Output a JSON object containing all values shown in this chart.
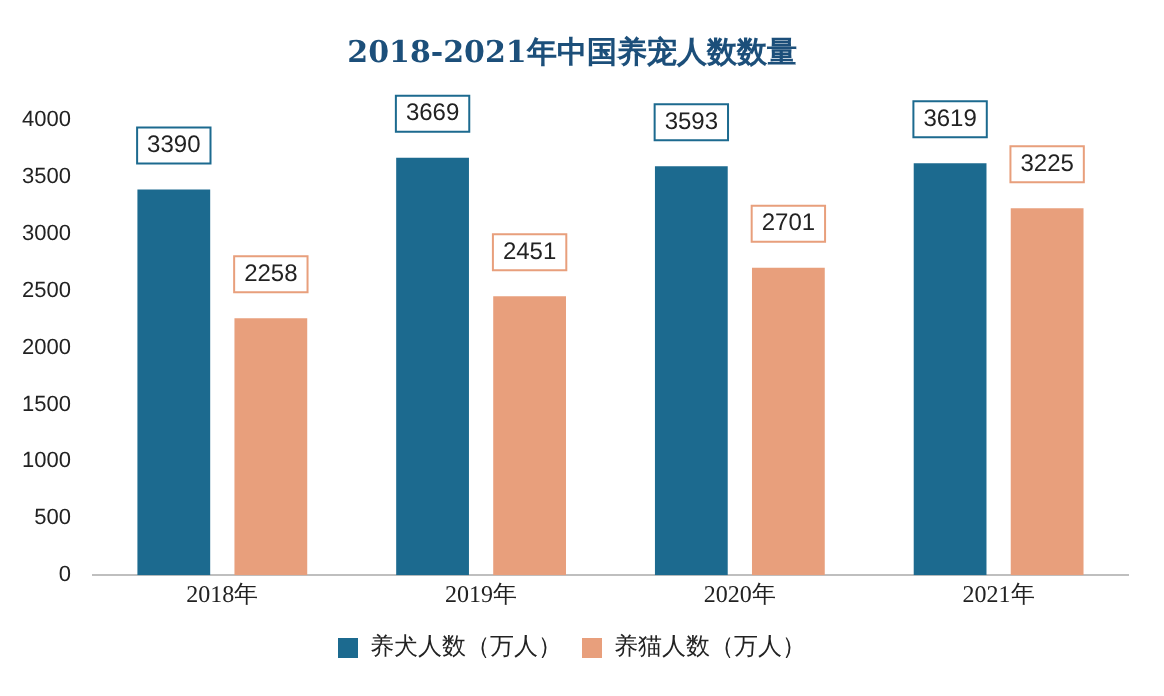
{
  "chart_data": {
    "type": "bar",
    "title": "2018-2021年中国养宠人数数量",
    "categories": [
      "2018年",
      "2019年",
      "2020年",
      "2021年"
    ],
    "series": [
      {
        "name": "养犬人数（万人）",
        "color": "#1c6a8f",
        "values": [
          3390,
          3669,
          3593,
          3619
        ]
      },
      {
        "name": "养猫人数（万人）",
        "color": "#e89f7c",
        "values": [
          2258,
          2451,
          2701,
          3225
        ]
      }
    ],
    "ylim": [
      0,
      4000
    ],
    "yticks": [
      0,
      500,
      1000,
      1500,
      2000,
      2500,
      3000,
      3500,
      4000
    ],
    "grid": false,
    "legend": "bottom",
    "data_labels": true
  }
}
